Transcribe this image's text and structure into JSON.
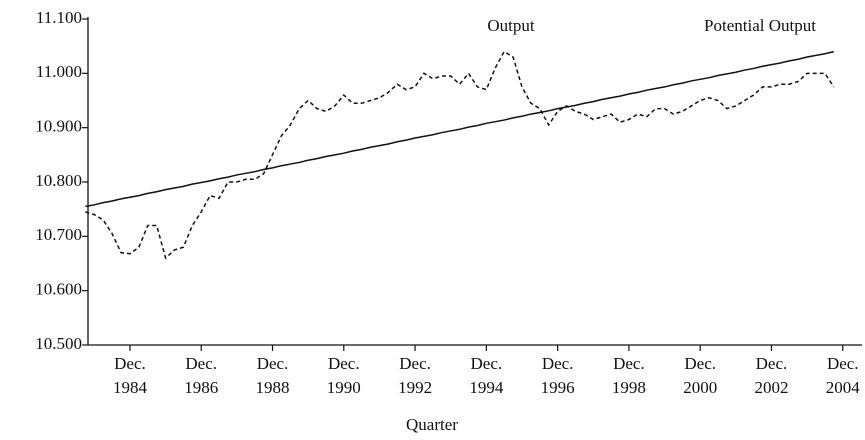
{
  "chart_data": {
    "type": "line",
    "x_label": "Quarter",
    "annotations": [
      "Output",
      "Potential Output"
    ],
    "categories": [
      null,
      null,
      null,
      null,
      null,
      "Dec. 1984",
      null,
      null,
      null,
      null,
      null,
      null,
      null,
      "Dec. 1986",
      null,
      null,
      null,
      null,
      null,
      null,
      null,
      "Dec. 1988",
      null,
      null,
      null,
      null,
      null,
      null,
      null,
      "Dec. 1990",
      null,
      null,
      null,
      null,
      null,
      null,
      null,
      "Dec. 1992",
      null,
      null,
      null,
      null,
      null,
      null,
      null,
      "Dec. 1994",
      null,
      null,
      null,
      null,
      null,
      null,
      null,
      "Dec. 1996",
      null,
      null,
      null,
      null,
      null,
      null,
      null,
      "Dec. 1998",
      null,
      null,
      null,
      null,
      null,
      null,
      null,
      "Dec. 2000",
      null,
      null,
      null,
      null,
      null,
      null,
      null,
      "Dec. 2002",
      null,
      null,
      null,
      null,
      null,
      null,
      null,
      "Dec. 2004"
    ],
    "series": [
      {
        "name": "Output",
        "color": "#111111",
        "line_style": "dashed",
        "values": [
          10.745,
          10.74,
          10.73,
          10.705,
          10.67,
          10.668,
          10.68,
          10.72,
          10.72,
          10.66,
          10.675,
          10.68,
          10.72,
          10.745,
          10.775,
          10.77,
          10.8,
          10.8,
          10.805,
          10.805,
          10.815,
          10.85,
          10.885,
          10.905,
          10.935,
          10.95,
          10.935,
          10.93,
          10.94,
          10.96,
          10.945,
          10.945,
          10.95,
          10.955,
          10.965,
          10.98,
          10.97,
          10.975,
          11.0,
          10.99,
          10.995,
          10.995,
          10.98,
          11.0,
          10.975,
          10.97,
          11.01,
          11.04,
          11.03,
          10.975,
          10.945,
          10.935,
          10.905,
          10.93,
          10.94,
          10.93,
          10.925,
          10.915,
          10.92,
          10.925,
          10.91,
          10.915,
          10.925,
          10.92,
          10.935,
          10.935,
          10.925,
          10.93,
          10.94,
          10.95,
          10.955,
          10.95,
          10.935,
          10.94,
          10.95,
          10.96,
          10.975,
          10.975,
          10.98,
          10.98,
          10.985,
          11.0,
          11.0,
          11.0,
          10.975,
          null
        ]
      },
      {
        "name": "Potential Output",
        "color": "#111111",
        "line_style": "solid",
        "values": [
          10.755,
          10.758,
          10.762,
          10.765,
          10.769,
          10.772,
          10.775,
          10.779,
          10.782,
          10.786,
          10.789,
          10.792,
          10.796,
          10.799,
          10.802,
          10.806,
          10.809,
          10.813,
          10.816,
          10.819,
          10.823,
          10.826,
          10.83,
          10.833,
          10.836,
          10.84,
          10.843,
          10.847,
          10.85,
          10.853,
          10.857,
          10.86,
          10.864,
          10.867,
          10.87,
          10.874,
          10.877,
          10.881,
          10.884,
          10.887,
          10.891,
          10.894,
          10.897,
          10.901,
          10.904,
          10.908,
          10.911,
          10.914,
          10.918,
          10.921,
          10.925,
          10.928,
          10.931,
          10.935,
          10.938,
          10.941,
          10.945,
          10.948,
          10.952,
          10.955,
          10.958,
          10.962,
          10.965,
          10.969,
          10.972,
          10.975,
          10.979,
          10.982,
          10.986,
          10.989,
          10.992,
          10.996,
          10.999,
          11.002,
          11.006,
          11.009,
          11.013,
          11.016,
          11.019,
          11.023,
          11.026,
          11.03,
          11.033,
          11.036,
          11.04,
          null
        ]
      }
    ],
    "ylim": [
      10.5,
      11.1
    ],
    "yticks": [
      {
        "value": 10.5,
        "label": "10.500"
      },
      {
        "value": 10.6,
        "label": "10.600"
      },
      {
        "value": 10.7,
        "label": "10.700"
      },
      {
        "value": 10.8,
        "label": "10.800"
      },
      {
        "value": 10.9,
        "label": "10.900"
      },
      {
        "value": 11.0,
        "label": "11.000"
      },
      {
        "value": 11.1,
        "label": "11.100"
      }
    ],
    "grid": false
  }
}
